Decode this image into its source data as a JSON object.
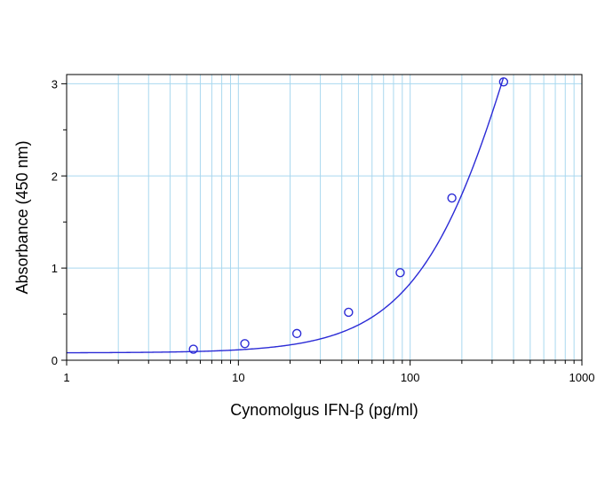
{
  "chart_data": {
    "type": "scatter",
    "xlabel": "Cynomolgus IFN-β (pg/ml)",
    "ylabel": "Absorbance (450 nm)",
    "xscale": "log",
    "xlim": [
      1,
      1000
    ],
    "ylim": [
      0,
      3.1
    ],
    "x_ticks": [
      1,
      10,
      100,
      1000
    ],
    "x_tick_labels": [
      "1",
      "10",
      "100",
      "1000"
    ],
    "y_ticks": [
      0,
      1,
      2,
      3
    ],
    "y_tick_labels": [
      "0",
      "1",
      "2",
      "3"
    ],
    "grid": true,
    "series": [
      {
        "points": [
          {
            "x": 5.47,
            "y": 0.12
          },
          {
            "x": 10.9,
            "y": 0.18
          },
          {
            "x": 21.9,
            "y": 0.29
          },
          {
            "x": 43.8,
            "y": 0.52
          },
          {
            "x": 87.5,
            "y": 0.95
          },
          {
            "x": 175,
            "y": 1.76
          },
          {
            "x": 350,
            "y": 3.02
          }
        ]
      }
    ],
    "fit_curve": {
      "type": "4PL",
      "a": 0.08,
      "b": 1.4,
      "c": 500,
      "d": 8
    }
  },
  "colors": {
    "series": "#2b2bd6",
    "grid": "#a9d8ef",
    "axis": "#000000"
  }
}
